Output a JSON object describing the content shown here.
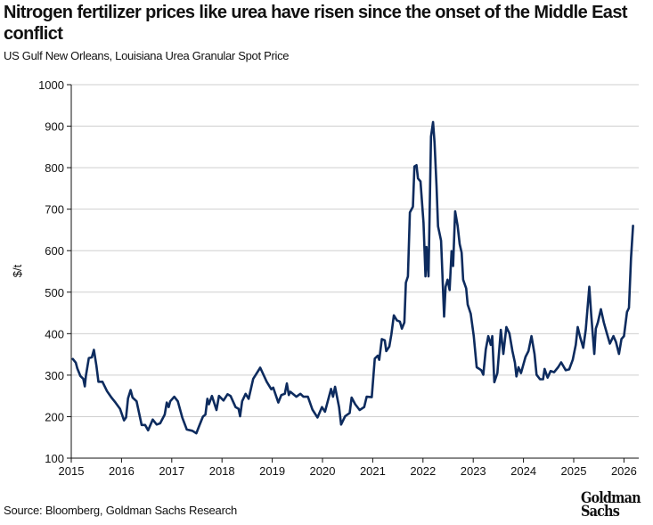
{
  "chart_data": {
    "type": "line",
    "title": "Nitrogen fertilizer prices like urea have risen since the onset of the Middle East conflict",
    "subtitle": "US Gulf New Orleans, Louisiana Urea Granular Spot Price",
    "xlabel": "",
    "ylabel": "$/t",
    "xlim": [
      2015,
      2026.3
    ],
    "ylim": [
      100,
      1000
    ],
    "grid": "horizontal",
    "xticks": [
      "2015",
      "2016",
      "2017",
      "2018",
      "2019",
      "2020",
      "2021",
      "2022",
      "2023",
      "2024",
      "2025",
      "2026"
    ],
    "yticks": [
      "100",
      "200",
      "300",
      "400",
      "500",
      "600",
      "700",
      "800",
      "900",
      "1000"
    ],
    "line_color": "#0d2b5e",
    "series": [
      {
        "name": "Urea Granular Spot Price",
        "x": [
          2015.03,
          2015.09,
          2015.12,
          2015.18,
          2015.24,
          2015.27,
          2015.29,
          2015.35,
          2015.41,
          2015.45,
          2015.5,
          2015.54,
          2015.62,
          2015.71,
          2015.8,
          2015.88,
          2015.97,
          2016.05,
          2016.09,
          2016.13,
          2016.18,
          2016.22,
          2016.3,
          2016.4,
          2016.47,
          2016.53,
          2016.62,
          2016.7,
          2016.77,
          2016.86,
          2016.9,
          2016.94,
          2016.97,
          2017.05,
          2017.12,
          2017.21,
          2017.3,
          2017.41,
          2017.49,
          2017.54,
          2017.62,
          2017.67,
          2017.71,
          2017.74,
          2017.8,
          2017.89,
          2017.94,
          2018.03,
          2018.11,
          2018.17,
          2018.27,
          2018.33,
          2018.36,
          2018.4,
          2018.47,
          2018.53,
          2018.62,
          2018.76,
          2018.89,
          2018.98,
          2019.02,
          2019.12,
          2019.18,
          2019.25,
          2019.29,
          2019.33,
          2019.36,
          2019.48,
          2019.56,
          2019.62,
          2019.71,
          2019.8,
          2019.9,
          2019.99,
          2020.05,
          2020.17,
          2020.21,
          2020.25,
          2020.33,
          2020.37,
          2020.45,
          2020.54,
          2020.58,
          2020.65,
          2020.74,
          2020.83,
          2020.88,
          2020.98,
          2021.04,
          2021.1,
          2021.13,
          2021.18,
          2021.24,
          2021.27,
          2021.33,
          2021.37,
          2021.42,
          2021.48,
          2021.54,
          2021.58,
          2021.63,
          2021.66,
          2021.7,
          2021.74,
          2021.8,
          2021.83,
          2021.87,
          2021.9,
          2021.95,
          2022.01,
          2022.05,
          2022.07,
          2022.11,
          2022.16,
          2022.2,
          2022.23,
          2022.27,
          2022.3,
          2022.36,
          2022.42,
          2022.45,
          2022.49,
          2022.53,
          2022.57,
          2022.6,
          2022.64,
          2022.69,
          2022.73,
          2022.77,
          2022.8,
          2022.86,
          2022.89,
          2022.95,
          2023.01,
          2023.07,
          2023.16,
          2023.2,
          2023.25,
          2023.3,
          2023.35,
          2023.38,
          2023.42,
          2023.48,
          2023.55,
          2023.6,
          2023.66,
          2023.72,
          2023.78,
          2023.83,
          2023.86,
          2023.9,
          2023.95,
          2024.04,
          2024.1,
          2024.16,
          2024.22,
          2024.26,
          2024.33,
          2024.39,
          2024.42,
          2024.48,
          2024.54,
          2024.61,
          2024.69,
          2024.75,
          2024.84,
          2024.91,
          2024.98,
          2025.04,
          2025.08,
          2025.13,
          2025.19,
          2025.24,
          2025.31,
          2025.35,
          2025.41,
          2025.44,
          2025.48,
          2025.54,
          2025.6,
          2025.66,
          2025.72,
          2025.79,
          2025.84,
          2025.9,
          2025.95,
          2026.0,
          2026.06,
          2026.1,
          2026.14,
          2026.18
        ],
        "y": [
          339,
          330,
          316,
          298,
          291,
          273,
          298,
          341,
          343,
          361,
          323,
          284,
          284,
          262,
          246,
          234,
          219,
          191,
          198,
          244,
          264,
          246,
          237,
          180,
          180,
          167,
          193,
          181,
          184,
          205,
          234,
          223,
          237,
          248,
          237,
          198,
          169,
          166,
          160,
          176,
          200,
          205,
          243,
          230,
          250,
          216,
          250,
          239,
          254,
          250,
          223,
          219,
          201,
          237,
          255,
          243,
          291,
          318,
          284,
          266,
          270,
          234,
          252,
          255,
          280,
          252,
          260,
          248,
          255,
          248,
          248,
          217,
          198,
          223,
          212,
          267,
          248,
          272,
          223,
          181,
          201,
          209,
          246,
          230,
          216,
          223,
          248,
          247,
          340,
          347,
          337,
          387,
          384,
          358,
          369,
          398,
          444,
          432,
          429,
          412,
          427,
          523,
          538,
          692,
          706,
          803,
          806,
          774,
          767,
          667,
          538,
          609,
          538,
          875,
          910,
          860,
          756,
          659,
          624,
          441,
          513,
          530,
          505,
          599,
          563,
          695,
          660,
          616,
          595,
          530,
          509,
          470,
          448,
          394,
          319,
          312,
          301,
          362,
          394,
          373,
          394,
          283,
          305,
          409,
          351,
          416,
          401,
          358,
          330,
          297,
          319,
          305,
          344,
          358,
          394,
          351,
          301,
          290,
          290,
          315,
          294,
          310,
          307,
          319,
          331,
          312,
          314,
          337,
          373,
          416,
          391,
          366,
          409,
          513,
          444,
          351,
          412,
          427,
          459,
          427,
          401,
          376,
          394,
          380,
          351,
          387,
          394,
          452,
          462,
          581,
          660
        ]
      }
    ]
  },
  "source": "Source: Bloomberg, Goldman Sachs Research",
  "logo": {
    "line1": "Goldman",
    "line2": "Sachs"
  }
}
